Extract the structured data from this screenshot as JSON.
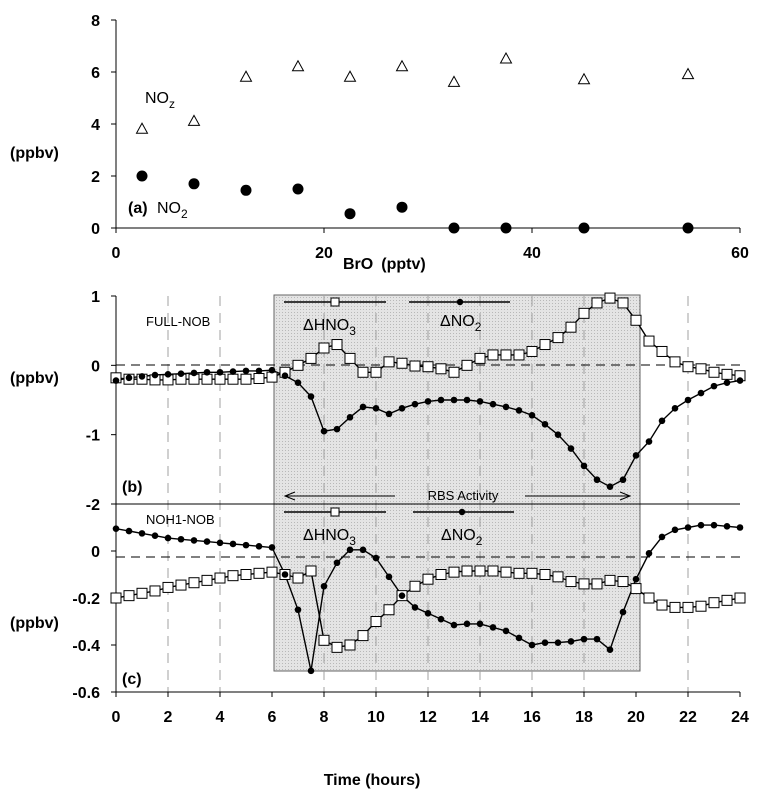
{
  "chart_data": [
    {
      "panel": "(a)",
      "type": "scatter",
      "xlabel": "BrO",
      "xlabel_unit": "(pptv)",
      "ylabel": "(ppbv)",
      "xlim": [
        0,
        60
      ],
      "ylim": [
        0,
        8
      ],
      "xticks": [
        "0",
        "20",
        "40",
        "60"
      ],
      "yticks": [
        "0",
        "2",
        "4",
        "6",
        "8"
      ],
      "grid": false,
      "series": [
        {
          "name": "NOz",
          "marker": "open-triangle",
          "x": [
            2.5,
            7.5,
            12.5,
            17.5,
            22.5,
            27.5,
            32.5,
            37.5,
            45,
            55
          ],
          "y": [
            3.8,
            4.1,
            5.8,
            6.2,
            5.8,
            6.2,
            5.6,
            6.5,
            5.7,
            5.9
          ]
        },
        {
          "name": "NO2",
          "marker": "filled-circle",
          "x": [
            2.5,
            7.5,
            12.5,
            17.5,
            22.5,
            27.5,
            32.5,
            37.5,
            45,
            55
          ],
          "y": [
            2.0,
            1.7,
            1.45,
            1.5,
            0.55,
            0.8,
            0.0,
            0.0,
            0.0,
            0.0
          ]
        }
      ]
    },
    {
      "panel": "(b)",
      "type": "line",
      "panel_label": "FULL-NOB",
      "ylabel": "(ppbv)",
      "xlim": [
        0,
        24
      ],
      "ylim": [
        -2,
        1
      ],
      "yticks": [
        "-2",
        "-1",
        "0",
        "1"
      ],
      "series": [
        {
          "name": "ΔHNO3",
          "marker": "open-square",
          "x": [
            0,
            0.5,
            1,
            1.5,
            2,
            2.5,
            3,
            3.5,
            4,
            4.5,
            5,
            5.5,
            6,
            6.5,
            7,
            7.5,
            8,
            8.5,
            9,
            9.5,
            10,
            10.5,
            11,
            11.5,
            12,
            12.5,
            13,
            13.5,
            14,
            14.5,
            15,
            15.5,
            16,
            16.5,
            17,
            17.5,
            18,
            18.5,
            19,
            19.5,
            20,
            20.5,
            21,
            21.5,
            22,
            22.5,
            23,
            23.5,
            24
          ],
          "y": [
            -0.18,
            -0.2,
            -0.2,
            -0.21,
            -0.21,
            -0.2,
            -0.2,
            -0.2,
            -0.2,
            -0.2,
            -0.2,
            -0.19,
            -0.17,
            -0.1,
            0.0,
            0.1,
            0.25,
            0.3,
            0.1,
            -0.1,
            -0.1,
            0.05,
            0.03,
            -0.01,
            -0.02,
            -0.05,
            -0.1,
            0.0,
            0.1,
            0.15,
            0.15,
            0.15,
            0.2,
            0.3,
            0.4,
            0.55,
            0.75,
            0.9,
            0.97,
            0.9,
            0.65,
            0.35,
            0.2,
            0.05,
            -0.02,
            -0.05,
            -0.1,
            -0.13,
            -0.15
          ]
        },
        {
          "name": "ΔNO2",
          "marker": "filled-circle",
          "x": [
            0,
            0.5,
            1,
            1.5,
            2,
            2.5,
            3,
            3.5,
            4,
            4.5,
            5,
            5.5,
            6,
            6.5,
            7,
            7.5,
            8,
            8.5,
            9,
            9.5,
            10,
            10.5,
            11,
            11.5,
            12,
            12.5,
            13,
            13.5,
            14,
            14.5,
            15,
            15.5,
            16,
            16.5,
            17,
            17.5,
            18,
            18.5,
            19,
            19.5,
            20,
            20.5,
            21,
            21.5,
            22,
            22.5,
            23,
            23.5,
            24
          ],
          "y": [
            -0.22,
            -0.18,
            -0.16,
            -0.14,
            -0.13,
            -0.12,
            -0.11,
            -0.1,
            -0.1,
            -0.09,
            -0.08,
            -0.08,
            -0.07,
            -0.15,
            -0.25,
            -0.45,
            -0.95,
            -0.92,
            -0.75,
            -0.6,
            -0.62,
            -0.7,
            -0.62,
            -0.56,
            -0.52,
            -0.5,
            -0.5,
            -0.5,
            -0.52,
            -0.56,
            -0.6,
            -0.65,
            -0.72,
            -0.85,
            -1.0,
            -1.2,
            -1.45,
            -1.65,
            -1.75,
            -1.65,
            -1.3,
            -1.1,
            -0.8,
            -0.62,
            -0.5,
            -0.4,
            -0.3,
            -0.25,
            -0.22
          ]
        }
      ]
    },
    {
      "panel": "(c)",
      "type": "line",
      "panel_label": "NOH1-NOB",
      "ylabel": "(ppbv)",
      "xlabel": "Time (hours)",
      "xlim": [
        0,
        24
      ],
      "ylim": [
        -0.6,
        0.2
      ],
      "xticks": [
        "0",
        "2",
        "4",
        "6",
        "8",
        "10",
        "12",
        "14",
        "16",
        "18",
        "20",
        "22",
        "24"
      ],
      "yticks": [
        "-0.6",
        "-0.4",
        "-0.2",
        "0"
      ],
      "series": [
        {
          "name": "ΔHNO3",
          "marker": "open-square",
          "x": [
            0,
            0.5,
            1,
            1.5,
            2,
            2.5,
            3,
            3.5,
            4,
            4.5,
            5,
            5.5,
            6,
            6.5,
            7,
            7.5,
            8,
            8.5,
            9,
            9.5,
            10,
            10.5,
            11,
            11.5,
            12,
            12.5,
            13,
            13.5,
            14,
            14.5,
            15,
            15.5,
            16,
            16.5,
            17,
            17.5,
            18,
            18.5,
            19,
            19.5,
            20,
            20.5,
            21,
            21.5,
            22,
            22.5,
            23,
            23.5,
            24
          ],
          "y": [
            -0.2,
            -0.19,
            -0.18,
            -0.17,
            -0.155,
            -0.145,
            -0.135,
            -0.125,
            -0.115,
            -0.105,
            -0.1,
            -0.095,
            -0.09,
            -0.1,
            -0.115,
            -0.085,
            -0.38,
            -0.41,
            -0.4,
            -0.36,
            -0.3,
            -0.25,
            -0.19,
            -0.15,
            -0.12,
            -0.1,
            -0.09,
            -0.085,
            -0.085,
            -0.085,
            -0.09,
            -0.095,
            -0.095,
            -0.1,
            -0.11,
            -0.13,
            -0.14,
            -0.14,
            -0.125,
            -0.13,
            -0.16,
            -0.2,
            -0.23,
            -0.24,
            -0.24,
            -0.235,
            -0.22,
            -0.21,
            -0.2
          ]
        },
        {
          "name": "ΔNO2",
          "marker": "filled-circle",
          "x": [
            0,
            0.5,
            1,
            1.5,
            2,
            2.5,
            3,
            3.5,
            4,
            4.5,
            5,
            5.5,
            6,
            6.5,
            7,
            7.5,
            8,
            8.5,
            9,
            9.5,
            10,
            10.5,
            11,
            11.5,
            12,
            12.5,
            13,
            13.5,
            14,
            14.5,
            15,
            15.5,
            16,
            16.5,
            17,
            17.5,
            18,
            18.5,
            19,
            19.5,
            20,
            20.5,
            21,
            21.5,
            22,
            22.5,
            23,
            23.5,
            24
          ],
          "y": [
            0.095,
            0.085,
            0.075,
            0.065,
            0.055,
            0.05,
            0.045,
            0.04,
            0.035,
            0.03,
            0.025,
            0.02,
            0.015,
            -0.1,
            -0.25,
            -0.51,
            -0.15,
            -0.05,
            0.005,
            0.005,
            -0.03,
            -0.11,
            -0.19,
            -0.24,
            -0.265,
            -0.29,
            -0.315,
            -0.31,
            -0.31,
            -0.325,
            -0.34,
            -0.37,
            -0.4,
            -0.39,
            -0.39,
            -0.385,
            -0.375,
            -0.375,
            -0.42,
            -0.26,
            -0.12,
            -0.01,
            0.06,
            0.09,
            0.1,
            0.11,
            0.11,
            0.105,
            0.1
          ]
        }
      ]
    }
  ],
  "labels": {
    "a_panel": "(a)",
    "a_no2_base": "NO",
    "a_no2_sub": "2",
    "a_noz_base": "NO",
    "a_noz_sub": "z",
    "a_ylabel": "(ppbv)",
    "a_xlabel": "BrO",
    "a_xunit": "(pptv)",
    "b_panel": "(b)",
    "b_name": "FULL-NOB",
    "b_ylabel": "(ppbv)",
    "b_hno3_base": "ΔHNO",
    "b_hno3_sub": "3",
    "b_no2_base": "ΔNO",
    "b_no2_sub": "2",
    "rbs": "RBS Activity",
    "c_panel": "(c)",
    "c_name": "NOH1-NOB",
    "c_ylabel": "(ppbv)",
    "c_hno3_base": "ΔHNO",
    "c_hno3_sub": "3",
    "c_no2_base": "ΔNO",
    "c_no2_sub": "2",
    "xlabel": "Time (hours)"
  },
  "colors": {
    "shade_fill": "#e2e2e2",
    "ink": "#000000",
    "grid_dash": "#999999"
  }
}
